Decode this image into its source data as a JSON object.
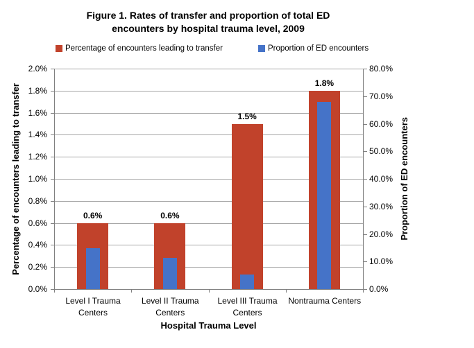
{
  "title": {
    "line1": "Figure 1. Rates of transfer and proportion of total ED",
    "line2": "encounters by hospital trauma level, 2009"
  },
  "legend": [
    {
      "label": "Percentage of encounters leading to transfer",
      "color": "#C1422B"
    },
    {
      "label": "Proportion of ED encounters",
      "color": "#4573C8"
    }
  ],
  "axes": {
    "left": {
      "title": "Percentage of encounters leading to transfer",
      "ticks": [
        "0.0%",
        "0.2%",
        "0.4%",
        "0.6%",
        "0.8%",
        "1.0%",
        "1.2%",
        "1.4%",
        "1.6%",
        "1.8%",
        "2.0%"
      ]
    },
    "right": {
      "title": "Proportion of ED encounters",
      "ticks": [
        "0.0%",
        "10.0%",
        "20.0%",
        "30.0%",
        "40.0%",
        "50.0%",
        "60.0%",
        "70.0%",
        "80.0%"
      ]
    },
    "x": {
      "title": "Hospital Trauma Level",
      "category_labels": [
        "Level I Trauma\nCenters",
        "Level II Trauma\nCenters",
        "Level III Trauma\nCenters",
        "Nontrauma Centers"
      ]
    }
  },
  "chart_data": {
    "type": "bar",
    "title": "Figure 1. Rates of transfer and proportion of total ED encounters by hospital trauma level, 2009",
    "categories": [
      "Level I Trauma Centers",
      "Level II Trauma Centers",
      "Level III Trauma Centers",
      "Nontrauma Centers"
    ],
    "series": [
      {
        "name": "Percentage of encounters leading to transfer",
        "axis": "left",
        "values": [
          0.6,
          0.6,
          1.5,
          1.8
        ],
        "data_labels": [
          "0.6%",
          "0.6%",
          "1.5%",
          "1.8%"
        ],
        "color": "#C1422B"
      },
      {
        "name": "Proportion of ED encounters",
        "axis": "right",
        "values": [
          14.8,
          11.4,
          5.2,
          67.9
        ],
        "color": "#4573C8"
      }
    ],
    "xlabel": "Hospital Trauma Level",
    "ylabel_left": "Percentage of encounters leading to transfer",
    "ylabel_right": "Proportion of ED encounters",
    "ylim_left": [
      0,
      2.0
    ],
    "ylim_right": [
      0,
      80.0
    ],
    "grid": true,
    "legend_position": "top"
  },
  "colors": {
    "red": "#C1422B",
    "blue": "#4573C8",
    "gridline": "#A6A6A6",
    "axis": "#808080"
  }
}
